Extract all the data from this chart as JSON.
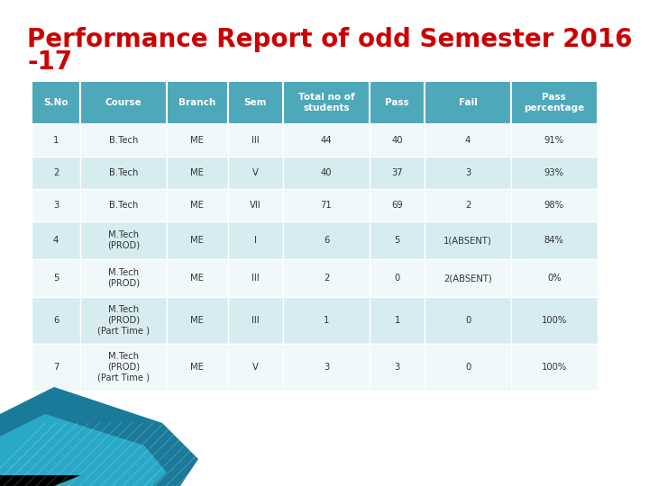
{
  "title_line1": "Performance Report of odd Semester 2016",
  "title_line2": "-17",
  "title_color": "#cc0000",
  "title_fontsize": 20,
  "header": [
    "S.No",
    "Course",
    "Branch",
    "Sem",
    "Total no of\nstudents",
    "Pass",
    "Fail",
    "Pass\npercentage"
  ],
  "header_bg": "#4da8ba",
  "header_text_color": "#ffffff",
  "rows": [
    [
      "1",
      "B.Tech",
      "ME",
      "III",
      "44",
      "40",
      "4",
      "91%"
    ],
    [
      "2",
      "B.Tech",
      "ME",
      "V",
      "40",
      "37",
      "3",
      "93%"
    ],
    [
      "3",
      "B.Tech",
      "ME",
      "VII",
      "71",
      "69",
      "2",
      "98%"
    ],
    [
      "4",
      "M.Tech\n(PROD)",
      "ME",
      "I",
      "6",
      "5",
      "1(ABSENT)",
      "84%"
    ],
    [
      "5",
      "M.Tech\n(PROD)",
      "ME",
      "III",
      "2",
      "0",
      "2(ABSENT)",
      "0%"
    ],
    [
      "6",
      "M.Tech\n(PROD)\n(Part Time )",
      "ME",
      "III",
      "1",
      "1",
      "0",
      "100%"
    ],
    [
      "7",
      "M.Tech\n(PROD)\n(Part Time )",
      "ME",
      "V",
      "3",
      "3",
      "0",
      "100%"
    ]
  ],
  "row_colors": [
    "#f0f8fa",
    "#d6ecf0",
    "#f0f8fa",
    "#d6ecf0",
    "#f0f8fa",
    "#d6ecf0",
    "#f0f8fa"
  ],
  "cell_text_color": "#333333",
  "background_color": "#ffffff",
  "wave_color1": "#1a7a99",
  "wave_color2": "#2aa8c8",
  "wave_color3": "#000000"
}
